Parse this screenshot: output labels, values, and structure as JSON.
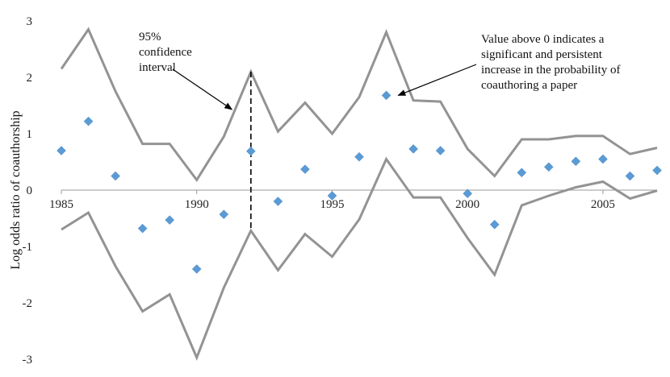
{
  "chart_data": {
    "type": "scatter",
    "title": "",
    "xlabel": "",
    "ylabel": "Log odds ratio of coauthorship",
    "xlim": [
      1985,
      2007
    ],
    "ylim": [
      -3,
      3
    ],
    "x_ticks": [
      1985,
      1990,
      1995,
      2000,
      2005
    ],
    "y_ticks": [
      3,
      2,
      1,
      0,
      -1,
      -2,
      -3
    ],
    "colors": {
      "points": "#5b9bd5",
      "bands": "#939393",
      "axis": "#999999",
      "annotation": "#000000"
    },
    "series": [
      {
        "type": "scatter",
        "x": [
          1985,
          1986,
          1987,
          1988,
          1989,
          1990,
          1991,
          1992,
          1993,
          1994,
          1995,
          1996,
          1997,
          1998,
          1999,
          2000,
          2001,
          2002,
          2003,
          2004,
          2005,
          2006,
          2007
        ],
        "values": [
          0.7,
          1.22,
          0.25,
          -0.68,
          -0.53,
          -1.4,
          -0.43,
          0.69,
          -0.2,
          0.37,
          -0.1,
          0.59,
          1.68,
          0.73,
          0.7,
          -0.06,
          -0.61,
          0.31,
          0.41,
          0.51,
          0.55,
          0.25,
          0.35
        ]
      },
      {
        "type": "line",
        "x": [
          1985,
          1986,
          1987,
          1988,
          1989,
          1990,
          1991,
          1992,
          1993,
          1994,
          1995,
          1996,
          1997,
          1998,
          1999,
          2000,
          2001,
          2002,
          2003,
          2004,
          2005,
          2006,
          2007
        ],
        "values": [
          2.15,
          2.85,
          1.75,
          0.82,
          0.82,
          0.18,
          0.95,
          2.1,
          1.04,
          1.55,
          1.0,
          1.65,
          2.8,
          1.59,
          1.57,
          0.73,
          0.25,
          0.9,
          0.9,
          0.96,
          0.96,
          0.64,
          0.75
        ]
      },
      {
        "type": "line",
        "x": [
          1985,
          1986,
          1987,
          1988,
          1989,
          1990,
          1991,
          1992,
          1993,
          1994,
          1995,
          1996,
          1997,
          1998,
          1999,
          2000,
          2001,
          2002,
          2003,
          2004,
          2005,
          2006,
          2007
        ],
        "values": [
          -0.7,
          -0.4,
          -1.35,
          -2.15,
          -1.85,
          -2.97,
          -1.73,
          -0.72,
          -1.42,
          -0.78,
          -1.18,
          -0.52,
          0.55,
          -0.13,
          -0.13,
          -0.85,
          -1.5,
          -0.27,
          -0.1,
          0.05,
          0.15,
          -0.15,
          -0.01
        ]
      }
    ],
    "annotations": [
      {
        "lines": [
          "95%",
          "confidence",
          "interval"
        ],
        "arrow_to": [
          1991.3,
          1.43
        ]
      },
      {
        "lines": [
          "Value above 0 indicates a",
          "significant and persistent",
          "increase in the probability of",
          "coauthoring a paper"
        ],
        "arrow_to": [
          1997.2,
          1.68
        ]
      }
    ],
    "reference_line": {
      "x": 1992,
      "y_from": -0.72,
      "y_to": 2.1
    }
  }
}
